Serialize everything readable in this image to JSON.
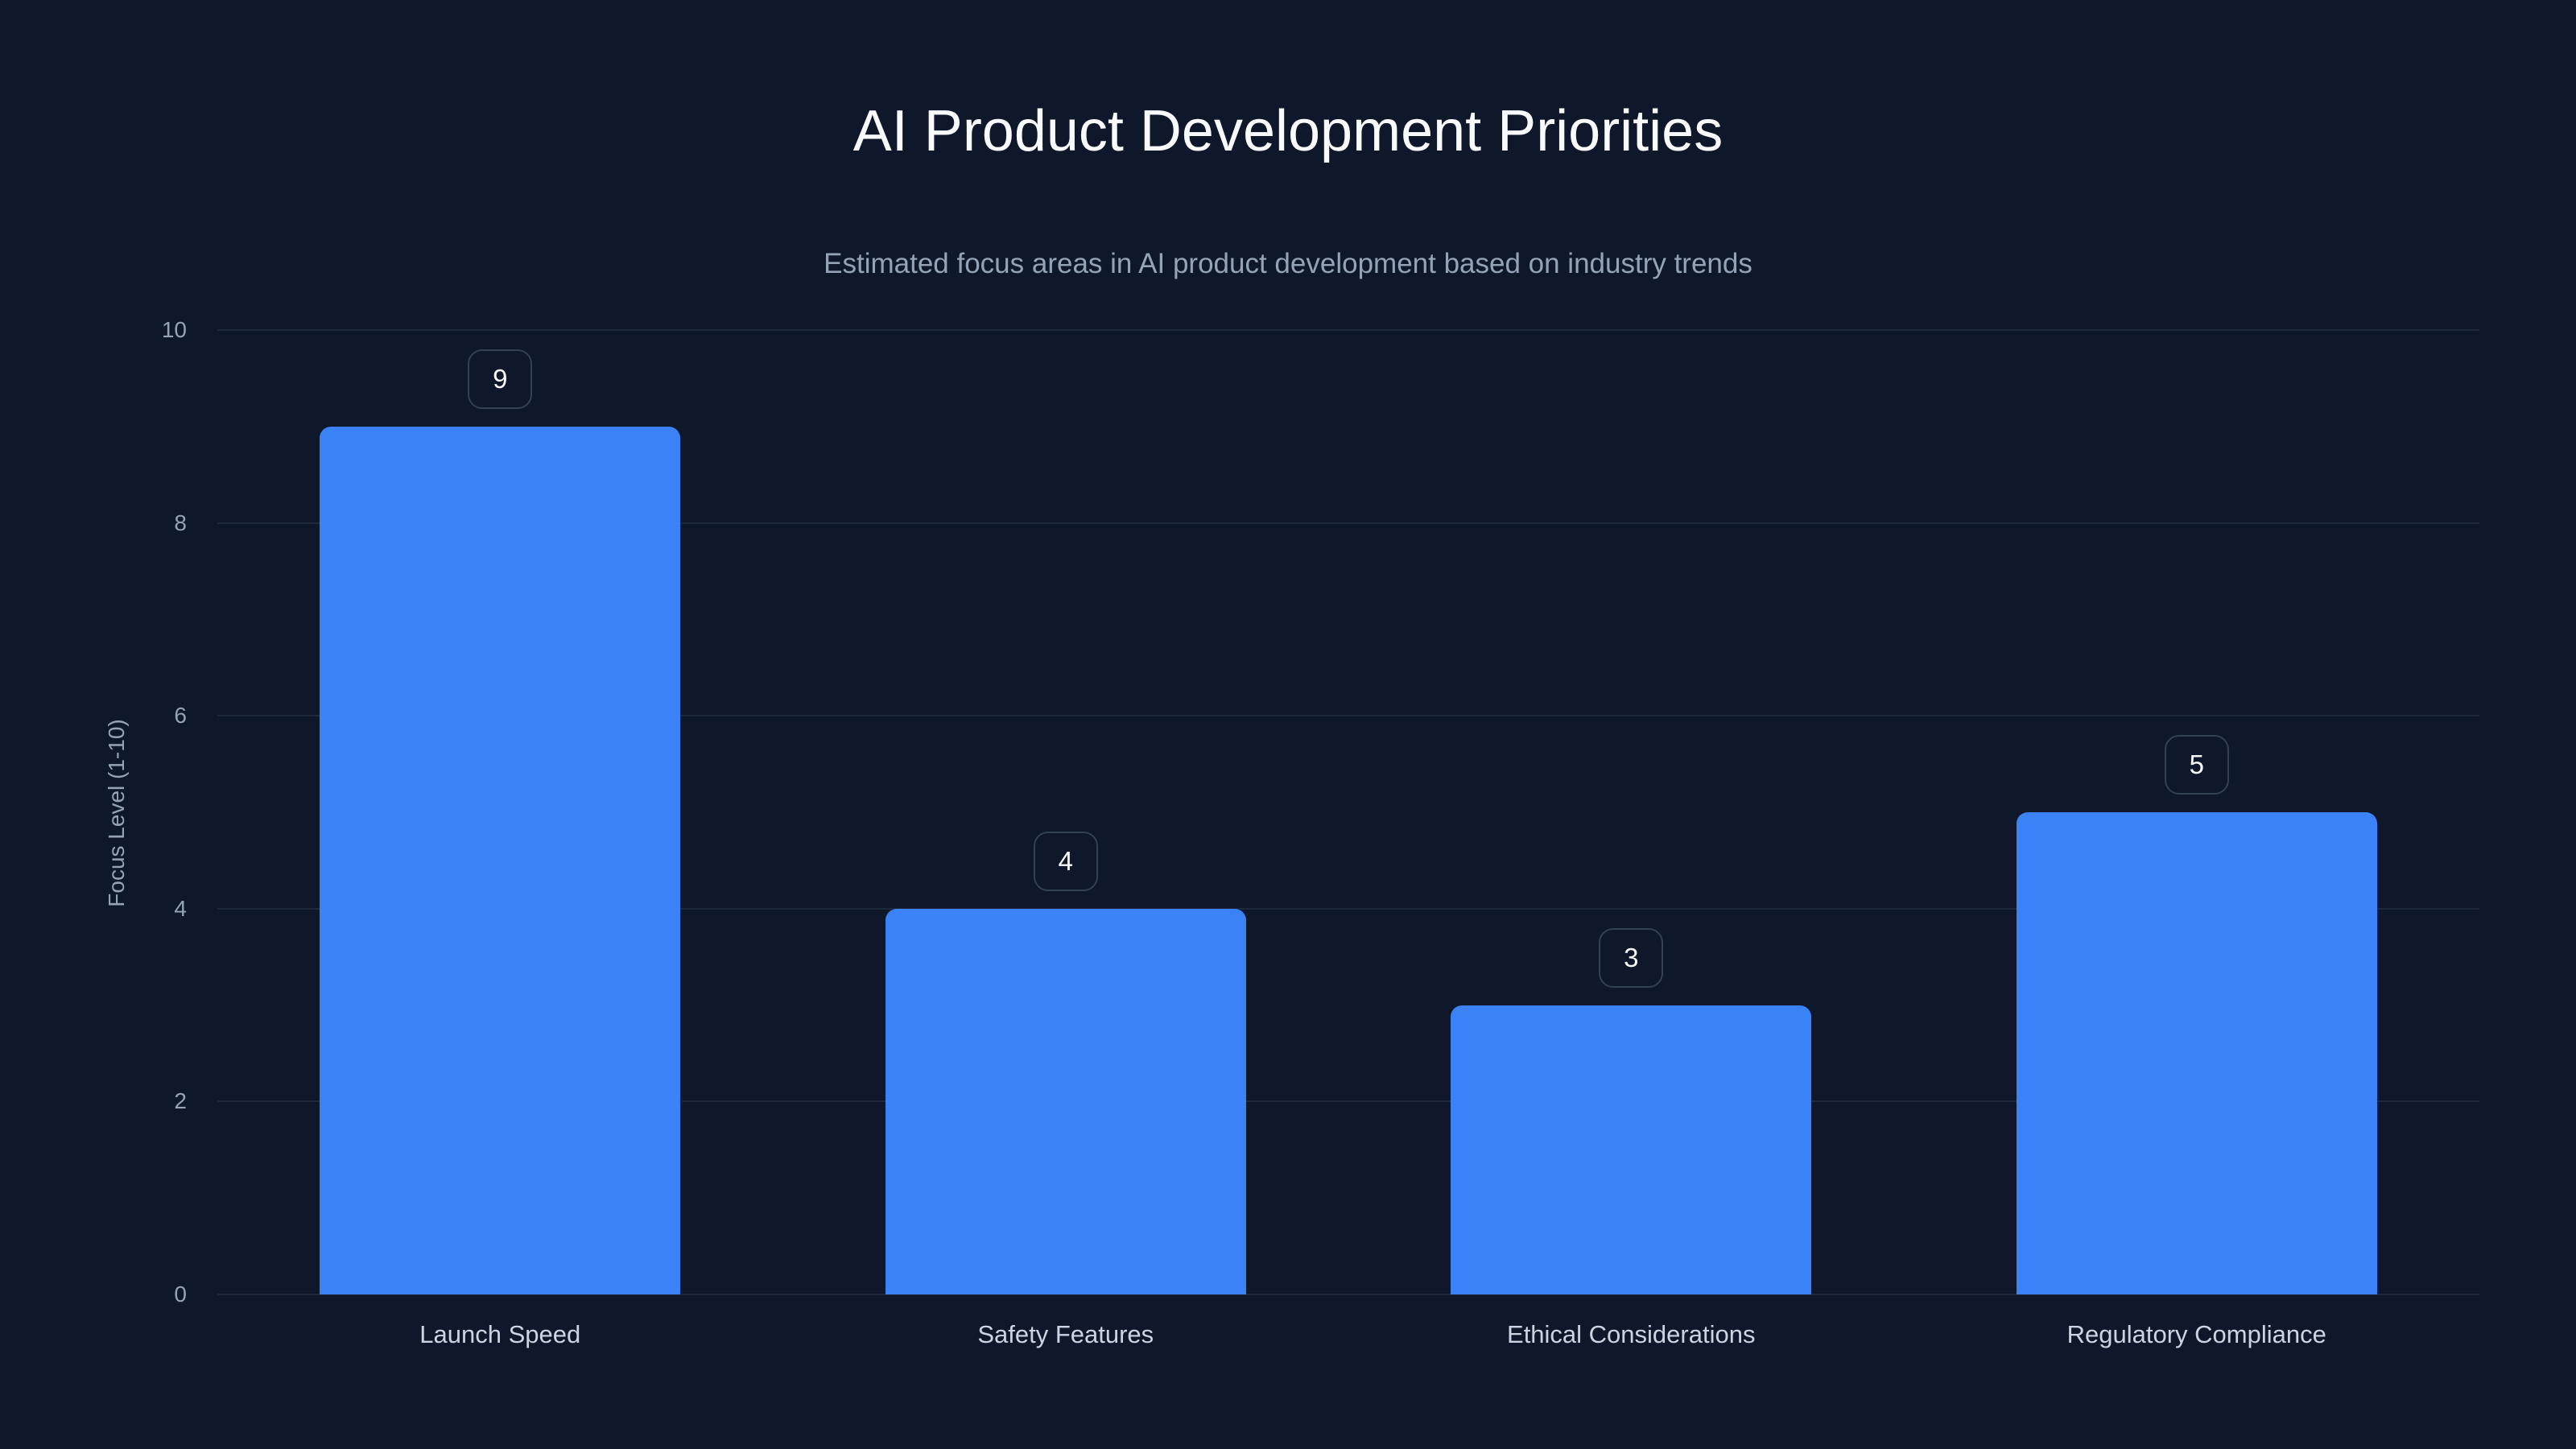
{
  "header": {
    "title": "AI Product Development Priorities",
    "subtitle": "Estimated focus areas in AI product development based on industry trends"
  },
  "colors": {
    "background": "#0f172a",
    "bar": "#3b82f6",
    "grid": "#1e293b",
    "label_border": "#334155",
    "text_primary": "#f8fafc",
    "text_secondary": "#94a3b8"
  },
  "chart_data": {
    "type": "bar",
    "title": "AI Product Development Priorities",
    "subtitle": "Estimated focus areas in AI product development based on industry trends",
    "categories": [
      "Launch Speed",
      "Safety Features",
      "Ethical Considerations",
      "Regulatory Compliance"
    ],
    "values": [
      9,
      4,
      3,
      5
    ],
    "xlabel": "",
    "ylabel": "Focus Level (1-10)",
    "ylim": [
      0,
      10
    ],
    "yticks": [
      0,
      2,
      4,
      6,
      8,
      10
    ],
    "grid": true,
    "legend": null,
    "data_labels": true
  }
}
